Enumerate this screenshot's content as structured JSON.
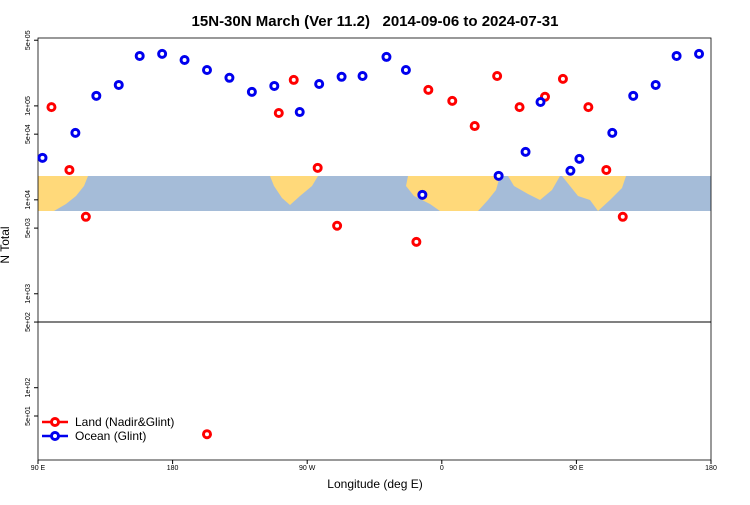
{
  "chart_data": {
    "type": "scatter",
    "title": "15N-30N March (Ver 11.2)   2014-09-06 to 2024-07-31",
    "x_label": "Longitude (deg E)",
    "y_label": "N Total",
    "log_y": true,
    "legend": "bottom-left",
    "xlim": [
      90,
      540
    ],
    "xticks": [
      {
        "value": 90,
        "label": "90 E"
      },
      {
        "value": 180,
        "label": "180"
      },
      {
        "value": 270,
        "label": "90 W"
      },
      {
        "value": 360,
        "label": "0"
      },
      {
        "value": 450,
        "label": "90 E"
      },
      {
        "value": 540,
        "label": "180"
      }
    ],
    "ylim": [
      17,
      528000
    ],
    "yticks": [
      {
        "value": 500000,
        "label": "5e+05"
      },
      {
        "value": 100000,
        "label": "1e+05"
      },
      {
        "value": 50000,
        "label": "5e+04"
      },
      {
        "value": 10000,
        "label": "1e+04"
      },
      {
        "value": 5000,
        "label": "5e+03"
      },
      {
        "value": 1000,
        "label": "1e+03"
      },
      {
        "value": 500,
        "label": "5e+02"
      },
      {
        "value": 100,
        "label": "1e+02"
      },
      {
        "value": 50,
        "label": "5e+01"
      }
    ],
    "series": [
      {
        "name": "Land (Nadir&Glint)",
        "color": "#ff0000",
        "x": [
          99,
          111,
          122,
          203,
          251,
          261,
          277,
          290,
          343,
          351,
          367,
          382,
          397,
          412,
          429,
          441,
          458,
          470,
          481
        ],
        "values": [
          97000,
          20800,
          6600,
          32,
          84000,
          189000,
          21900,
          5300,
          3570,
          148000,
          113000,
          61000,
          208000,
          97000,
          125000,
          194000,
          97000,
          20800,
          6600
        ]
      },
      {
        "name": "Ocean (Glint)",
        "color": "#0000ee",
        "x": [
          93,
          115,
          129,
          144,
          158,
          173,
          188,
          203,
          218,
          233,
          248,
          265,
          278,
          293,
          307,
          323,
          336,
          347,
          398,
          416,
          426,
          446,
          452,
          474,
          488,
          503,
          517,
          532
        ],
        "values": [
          28000,
          51600,
          128000,
          167000,
          340000,
          358000,
          308000,
          241000,
          199000,
          141000,
          163000,
          86000,
          171000,
          204000,
          208000,
          332000,
          241000,
          11300,
          18000,
          32400,
          110000,
          20400,
          27300,
          51600,
          128000,
          167000,
          340000,
          358000
        ]
      }
    ]
  }
}
